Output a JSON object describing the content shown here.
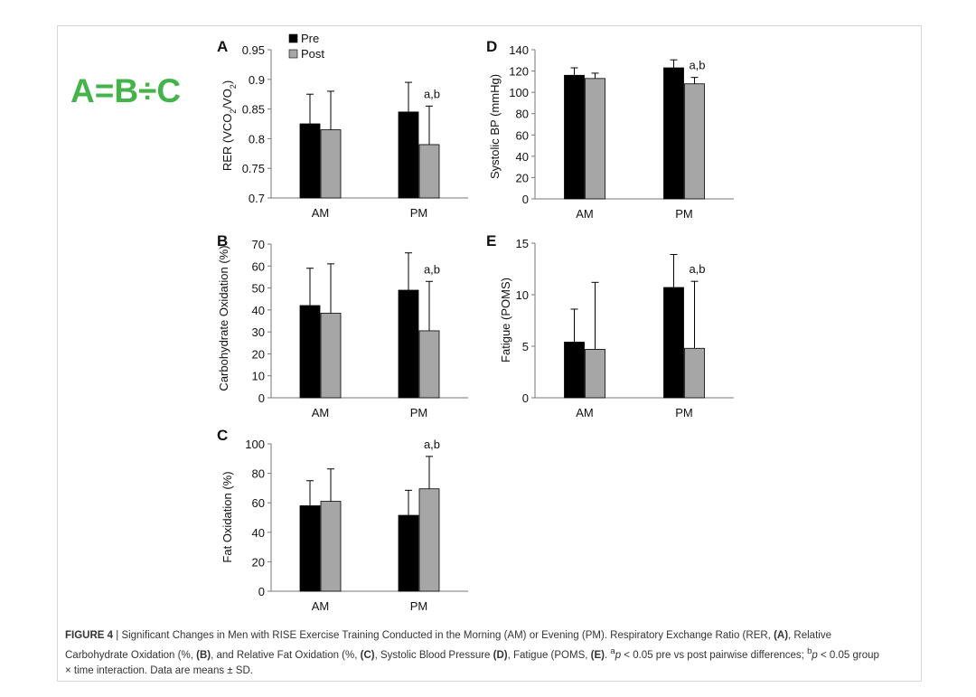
{
  "equation": "A=B÷C",
  "legend": {
    "pre": "Pre",
    "post": "Post"
  },
  "colors": {
    "pre": "#000000",
    "post": "#a6a6a6"
  },
  "caption": {
    "label": "FIGURE 4",
    "sep": " | ",
    "t1": "Significant Changes in Men with RISE Exercise Training Conducted in the Morning (AM) or Evening (PM). Respiratory Exchange Ratio (RER, ",
    "a": "(A)",
    "t2": ", Relative Carbohydrate Oxidation (%, ",
    "b": "(B)",
    "t3": ", and Relative Fat Oxidation (%, ",
    "c": "(C)",
    "t4": ", Systolic Blood Pressure ",
    "d": "(D)",
    "t5": ", Fatigue (POMS, ",
    "e": "(E)",
    "t6": ". ",
    "sup_a": "a",
    "p1": "p",
    "t7": " < 0.05 pre vs post pairwise differences; ",
    "sup_b": "b",
    "p2": "p",
    "t8": " < 0.05 group × time interaction. Data are means ± SD."
  },
  "chart_data": [
    {
      "panel": "A",
      "type": "bar",
      "categories": [
        "AM",
        "PM"
      ],
      "ylabel": "RER (VCO2/VO2)",
      "ylim": [
        0.7,
        0.95
      ],
      "yticks": [
        0.7,
        0.75,
        0.8,
        0.85,
        0.9,
        0.95
      ],
      "ytick_labels": [
        "0.7",
        "0.75",
        "0.8",
        "0.85",
        "0.9",
        "0.95"
      ],
      "series": [
        {
          "name": "Pre",
          "values": [
            0.825,
            0.845
          ],
          "err": [
            0.05,
            0.05
          ]
        },
        {
          "name": "Post",
          "values": [
            0.815,
            0.79
          ],
          "err": [
            0.065,
            0.065
          ]
        }
      ],
      "annotation": {
        "category": "PM",
        "text": "a,b"
      },
      "legend": true
    },
    {
      "panel": "B",
      "type": "bar",
      "categories": [
        "AM",
        "PM"
      ],
      "ylabel": "Carbohydrate Oxidation (%)",
      "ylim": [
        0,
        70
      ],
      "yticks": [
        0,
        10,
        20,
        30,
        40,
        50,
        60,
        70
      ],
      "ytick_labels": [
        "0",
        "10",
        "20",
        "30",
        "40",
        "50",
        "60",
        "70"
      ],
      "series": [
        {
          "name": "Pre",
          "values": [
            42,
            49
          ],
          "err": [
            17,
            17
          ]
        },
        {
          "name": "Post",
          "values": [
            38.5,
            30.5
          ],
          "err": [
            22.5,
            22.5
          ]
        }
      ],
      "annotation": {
        "category": "PM",
        "text": "a,b"
      }
    },
    {
      "panel": "C",
      "type": "bar",
      "categories": [
        "AM",
        "PM"
      ],
      "ylabel": "Fat Oxidation (%)",
      "ylim": [
        0,
        100
      ],
      "yticks": [
        0,
        20,
        40,
        60,
        80,
        100
      ],
      "ytick_labels": [
        "0",
        "20",
        "40",
        "60",
        "80",
        "100"
      ],
      "series": [
        {
          "name": "Pre",
          "values": [
            58,
            51.5
          ],
          "err": [
            17,
            17
          ]
        },
        {
          "name": "Post",
          "values": [
            61,
            69.5
          ],
          "err": [
            22,
            22
          ]
        }
      ],
      "annotation": {
        "category": "PM",
        "text": "a,b"
      }
    },
    {
      "panel": "D",
      "type": "bar",
      "categories": [
        "AM",
        "PM"
      ],
      "ylabel": "Systolic BP (mmHg)",
      "ylim": [
        0,
        140
      ],
      "yticks": [
        0,
        20,
        40,
        60,
        80,
        100,
        120,
        140
      ],
      "ytick_labels": [
        "0",
        "20",
        "40",
        "60",
        "80",
        "100",
        "120",
        "140"
      ],
      "series": [
        {
          "name": "Pre",
          "values": [
            116,
            123
          ],
          "err": [
            7,
            7.5
          ]
        },
        {
          "name": "Post",
          "values": [
            113,
            108
          ],
          "err": [
            5,
            6
          ]
        }
      ],
      "annotation": {
        "category": "PM",
        "text": "a,b"
      }
    },
    {
      "panel": "E",
      "type": "bar",
      "categories": [
        "AM",
        "PM"
      ],
      "ylabel": "Fatigue (POMS)",
      "ylim": [
        0,
        15
      ],
      "yticks": [
        0,
        5,
        10,
        15
      ],
      "ytick_labels": [
        "0",
        "5",
        "10",
        "15"
      ],
      "series": [
        {
          "name": "Pre",
          "values": [
            5.4,
            10.7
          ],
          "err": [
            3.2,
            3.2
          ]
        },
        {
          "name": "Post",
          "values": [
            4.7,
            4.8
          ],
          "err": [
            6.5,
            6.5
          ]
        }
      ],
      "annotation": {
        "category": "PM",
        "text": "a,b"
      }
    }
  ]
}
